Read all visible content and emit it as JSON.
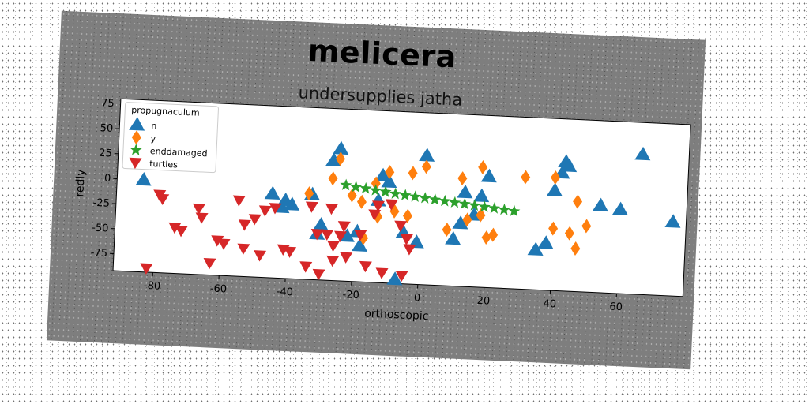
{
  "chart_data": {
    "type": "scatter",
    "title": "melicera",
    "subtitle": "undersupplies jatha",
    "xlabel": "orthoscopic",
    "ylabel": "redly",
    "xlim": [
      -92,
      80
    ],
    "ylim": [
      -92,
      80
    ],
    "xticks": [
      -80,
      -60,
      -40,
      -20,
      0,
      20,
      40,
      60
    ],
    "yticks": [
      50,
      25,
      0,
      -25,
      -50,
      -75
    ],
    "ytick_top_label": "75",
    "legend_title": "propugnaculum",
    "legend_position": "top-left",
    "series": [
      {
        "name": "n",
        "color": "#1f77b4",
        "marker": "triangle-up",
        "x": [
          -84,
          -45,
          -42,
          -39,
          -41,
          -33,
          -30,
          -31,
          -27,
          -25,
          -22,
          -19,
          -18,
          -13,
          -12,
          -10,
          -7,
          -5,
          -1,
          1,
          10,
          12,
          13,
          16,
          18,
          20,
          35,
          38,
          40,
          42,
          43,
          44,
          54,
          60,
          66,
          76
        ],
        "y": [
          0,
          -8,
          -21,
          -18,
          -14,
          -7,
          -37,
          -46,
          28,
          40,
          -47,
          -42,
          -56,
          -10,
          15,
          9,
          -88,
          -41,
          -50,
          37,
          -45,
          -29,
          2,
          -20,
          -1,
          19,
          -52,
          -45,
          8,
          26,
          37,
          33,
          -5,
          -8,
          48,
          -18
        ]
      },
      {
        "name": "y",
        "color": "#ff7f0e",
        "marker": "diamond",
        "x": [
          -34,
          -27,
          -25,
          -21,
          -18,
          -17,
          -14,
          -13,
          -10,
          -8,
          -4,
          -3,
          1,
          8,
          12,
          14,
          18,
          18,
          20,
          22,
          31,
          40,
          40,
          45,
          47,
          47,
          50
        ],
        "y": [
          -6,
          10,
          30,
          -6,
          -12,
          -48,
          7,
          -26,
          19,
          -20,
          -24,
          19,
          26,
          -36,
          16,
          -25,
          28,
          -20,
          -42,
          -39,
          20,
          21,
          -30,
          -34,
          -2,
          -49,
          -26
        ]
      },
      {
        "name": "enddamaged",
        "color": "#2ca02c",
        "marker": "star",
        "x": [
          -23,
          -20,
          -17,
          -14,
          -11,
          -8,
          -5,
          -2,
          1,
          4,
          7,
          10,
          13,
          16,
          19,
          22,
          25,
          28
        ],
        "y": [
          4,
          2.5,
          1.5,
          0,
          -1,
          -2.5,
          -3.5,
          -4.5,
          -5.5,
          -6.5,
          -7.5,
          -8.5,
          -9.5,
          -10.5,
          -11.5,
          -12.5,
          -13.5,
          -14.5
        ]
      },
      {
        "name": "turtles",
        "color": "#d62728",
        "marker": "triangle-down",
        "x": [
          -82,
          -79,
          -78,
          -74,
          -72,
          -67,
          -66,
          -63,
          -61,
          -59,
          -55,
          -53,
          -53,
          -50,
          -48,
          -47,
          -44,
          -41,
          -39,
          -34,
          -33,
          -31,
          -30,
          -28,
          -27,
          -26,
          -26,
          -24,
          -23,
          -22,
          -18,
          -16,
          -14,
          -13,
          -11,
          -9,
          -6,
          -5,
          -4,
          -3
        ],
        "y": [
          -88,
          -14,
          -18,
          -46,
          -49,
          -26,
          -35,
          -80,
          -57,
          -60,
          -16,
          -40,
          -64,
          -34,
          -70,
          -25,
          -22,
          -63,
          -65,
          -79,
          -19,
          -46,
          -86,
          -46,
          -20,
          -57,
          -72,
          -47,
          -37,
          -68,
          -45,
          -76,
          -24,
          -15,
          -82,
          -13,
          -34,
          -84,
          -47,
          -57
        ]
      }
    ]
  }
}
